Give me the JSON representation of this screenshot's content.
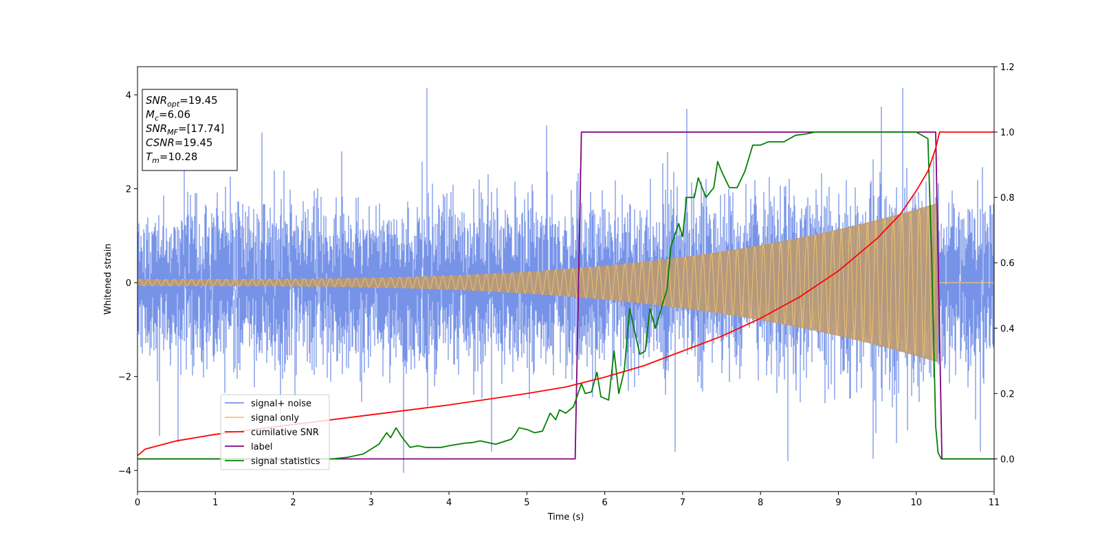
{
  "chart_data": {
    "type": "line",
    "title": "",
    "xlabel": "Time (s)",
    "ylabel": "Whitened strain",
    "xlim": [
      0,
      11
    ],
    "ylim_left": [
      -4.45,
      4.6
    ],
    "ylim_right": [
      -0.1,
      1.2
    ],
    "x_ticks": [
      "0",
      "1",
      "2",
      "3",
      "4",
      "5",
      "6",
      "7",
      "8",
      "9",
      "10",
      "11"
    ],
    "y_left_ticks": [
      "−4",
      "−2",
      "0",
      "2",
      "4"
    ],
    "y_right_ticks": [
      "0.0",
      "0.2",
      "0.4",
      "0.6",
      "0.8",
      "1.0",
      "1.2"
    ],
    "grid": false,
    "legend_position": "lower-left",
    "annotation": {
      "lines": [
        {
          "base": "SNR",
          "sub": "opt",
          "rest": "=19.45"
        },
        {
          "base": "M",
          "sub": "c",
          "rest": "=6.06"
        },
        {
          "base": "SNR",
          "sub": "MF",
          "rest": "=[17.74]"
        },
        {
          "base": "CSNR",
          "sub": "",
          "rest": "=19.45"
        },
        {
          "base": "T",
          "sub": "m",
          "rest": "=10.28"
        }
      ]
    },
    "series": [
      {
        "name": "signal+ noise",
        "axis": "left",
        "color": "#7693e8",
        "noise_std": 0.95,
        "peaks": [
          [
            0.6,
            2.9
          ],
          [
            1.6,
            3.2
          ],
          [
            3.72,
            4.15
          ],
          [
            3.42,
            -4.05
          ],
          [
            5.25,
            3.35
          ],
          [
            7.05,
            3.7
          ],
          [
            8.35,
            -3.8
          ],
          [
            9.83,
            4.15
          ],
          [
            9.55,
            3.75
          ],
          [
            4.55,
            -3.6
          ],
          [
            6.9,
            -3.6
          ],
          [
            9.45,
            -3.75
          ],
          [
            10.82,
            -3.6
          ]
        ]
      },
      {
        "name": "signal only",
        "axis": "left",
        "color": "#f5c36a",
        "overlap_color": "#bb9a72",
        "amplitude_start": 0.07,
        "amplitude_end": 1.7,
        "merger_time": 10.28
      },
      {
        "name": "cumilative SNR",
        "axis": "right",
        "color": "#ff0000",
        "points": [
          [
            0,
            0.01
          ],
          [
            0.1,
            0.03
          ],
          [
            0.5,
            0.055
          ],
          [
            1,
            0.075
          ],
          [
            2,
            0.105
          ],
          [
            3,
            0.135
          ],
          [
            4,
            0.165
          ],
          [
            5,
            0.2
          ],
          [
            5.5,
            0.22
          ],
          [
            6,
            0.25
          ],
          [
            6.5,
            0.285
          ],
          [
            7,
            0.33
          ],
          [
            7.5,
            0.375
          ],
          [
            8,
            0.43
          ],
          [
            8.5,
            0.495
          ],
          [
            9,
            0.575
          ],
          [
            9.5,
            0.675
          ],
          [
            9.8,
            0.75
          ],
          [
            10,
            0.82
          ],
          [
            10.15,
            0.88
          ],
          [
            10.25,
            0.95
          ],
          [
            10.3,
            1.0
          ],
          [
            11,
            1.0
          ]
        ]
      },
      {
        "name": "label",
        "axis": "right",
        "color": "#800080",
        "points": [
          [
            0,
            0
          ],
          [
            5.62,
            0
          ],
          [
            5.7,
            1.0
          ],
          [
            10.25,
            1.0
          ],
          [
            10.33,
            0
          ],
          [
            11,
            0
          ]
        ]
      },
      {
        "name": "signal statistics",
        "axis": "right",
        "color": "#008000",
        "points": [
          [
            0,
            0.0
          ],
          [
            2.5,
            0.0
          ],
          [
            2.7,
            0.005
          ],
          [
            2.9,
            0.015
          ],
          [
            3.0,
            0.03
          ],
          [
            3.1,
            0.045
          ],
          [
            3.2,
            0.08
          ],
          [
            3.25,
            0.065
          ],
          [
            3.32,
            0.095
          ],
          [
            3.4,
            0.065
          ],
          [
            3.5,
            0.035
          ],
          [
            3.6,
            0.04
          ],
          [
            3.7,
            0.035
          ],
          [
            3.9,
            0.035
          ],
          [
            4.0,
            0.04
          ],
          [
            4.2,
            0.048
          ],
          [
            4.3,
            0.05
          ],
          [
            4.4,
            0.055
          ],
          [
            4.5,
            0.05
          ],
          [
            4.6,
            0.045
          ],
          [
            4.8,
            0.06
          ],
          [
            4.85,
            0.075
          ],
          [
            4.9,
            0.095
          ],
          [
            5.0,
            0.09
          ],
          [
            5.1,
            0.08
          ],
          [
            5.2,
            0.085
          ],
          [
            5.3,
            0.14
          ],
          [
            5.37,
            0.12
          ],
          [
            5.42,
            0.15
          ],
          [
            5.5,
            0.14
          ],
          [
            5.6,
            0.16
          ],
          [
            5.7,
            0.23
          ],
          [
            5.75,
            0.2
          ],
          [
            5.83,
            0.205
          ],
          [
            5.9,
            0.265
          ],
          [
            5.95,
            0.19
          ],
          [
            6.05,
            0.18
          ],
          [
            6.12,
            0.33
          ],
          [
            6.18,
            0.2
          ],
          [
            6.25,
            0.27
          ],
          [
            6.32,
            0.46
          ],
          [
            6.45,
            0.32
          ],
          [
            6.52,
            0.33
          ],
          [
            6.58,
            0.46
          ],
          [
            6.65,
            0.4
          ],
          [
            6.8,
            0.52
          ],
          [
            6.85,
            0.65
          ],
          [
            6.95,
            0.72
          ],
          [
            7.0,
            0.68
          ],
          [
            7.05,
            0.8
          ],
          [
            7.15,
            0.8
          ],
          [
            7.2,
            0.86
          ],
          [
            7.3,
            0.8
          ],
          [
            7.4,
            0.83
          ],
          [
            7.45,
            0.91
          ],
          [
            7.5,
            0.88
          ],
          [
            7.6,
            0.83
          ],
          [
            7.7,
            0.83
          ],
          [
            7.8,
            0.88
          ],
          [
            7.9,
            0.96
          ],
          [
            8.0,
            0.96
          ],
          [
            8.1,
            0.97
          ],
          [
            8.3,
            0.97
          ],
          [
            8.45,
            0.99
          ],
          [
            8.6,
            0.995
          ],
          [
            8.7,
            1.0
          ],
          [
            10.0,
            1.0
          ],
          [
            10.15,
            0.98
          ],
          [
            10.2,
            0.6
          ],
          [
            10.25,
            0.1
          ],
          [
            10.28,
            0.02
          ],
          [
            10.32,
            0.0
          ],
          [
            11,
            0.0
          ]
        ]
      }
    ]
  }
}
